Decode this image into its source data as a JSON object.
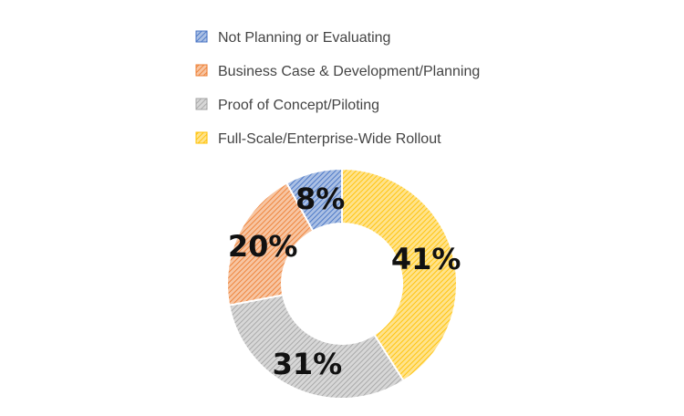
{
  "chart_data": {
    "type": "pie",
    "title": "",
    "legend_position": "top",
    "slices": [
      {
        "label": "Not Planning or Evaluating",
        "value": 8,
        "display": "8%",
        "color": "#4472c4"
      },
      {
        "label": "Business Case & Development/Planning",
        "value": 20,
        "display": "20%",
        "color": "#ed7d31"
      },
      {
        "label": "Proof of Concept/Piloting",
        "value": 31,
        "display": "31%",
        "color": "#a5a5a5"
      },
      {
        "label": "Full-Scale/Enterprise-Wide Rollout",
        "value": 41,
        "display": "41%",
        "color": "#ffc000"
      }
    ]
  }
}
